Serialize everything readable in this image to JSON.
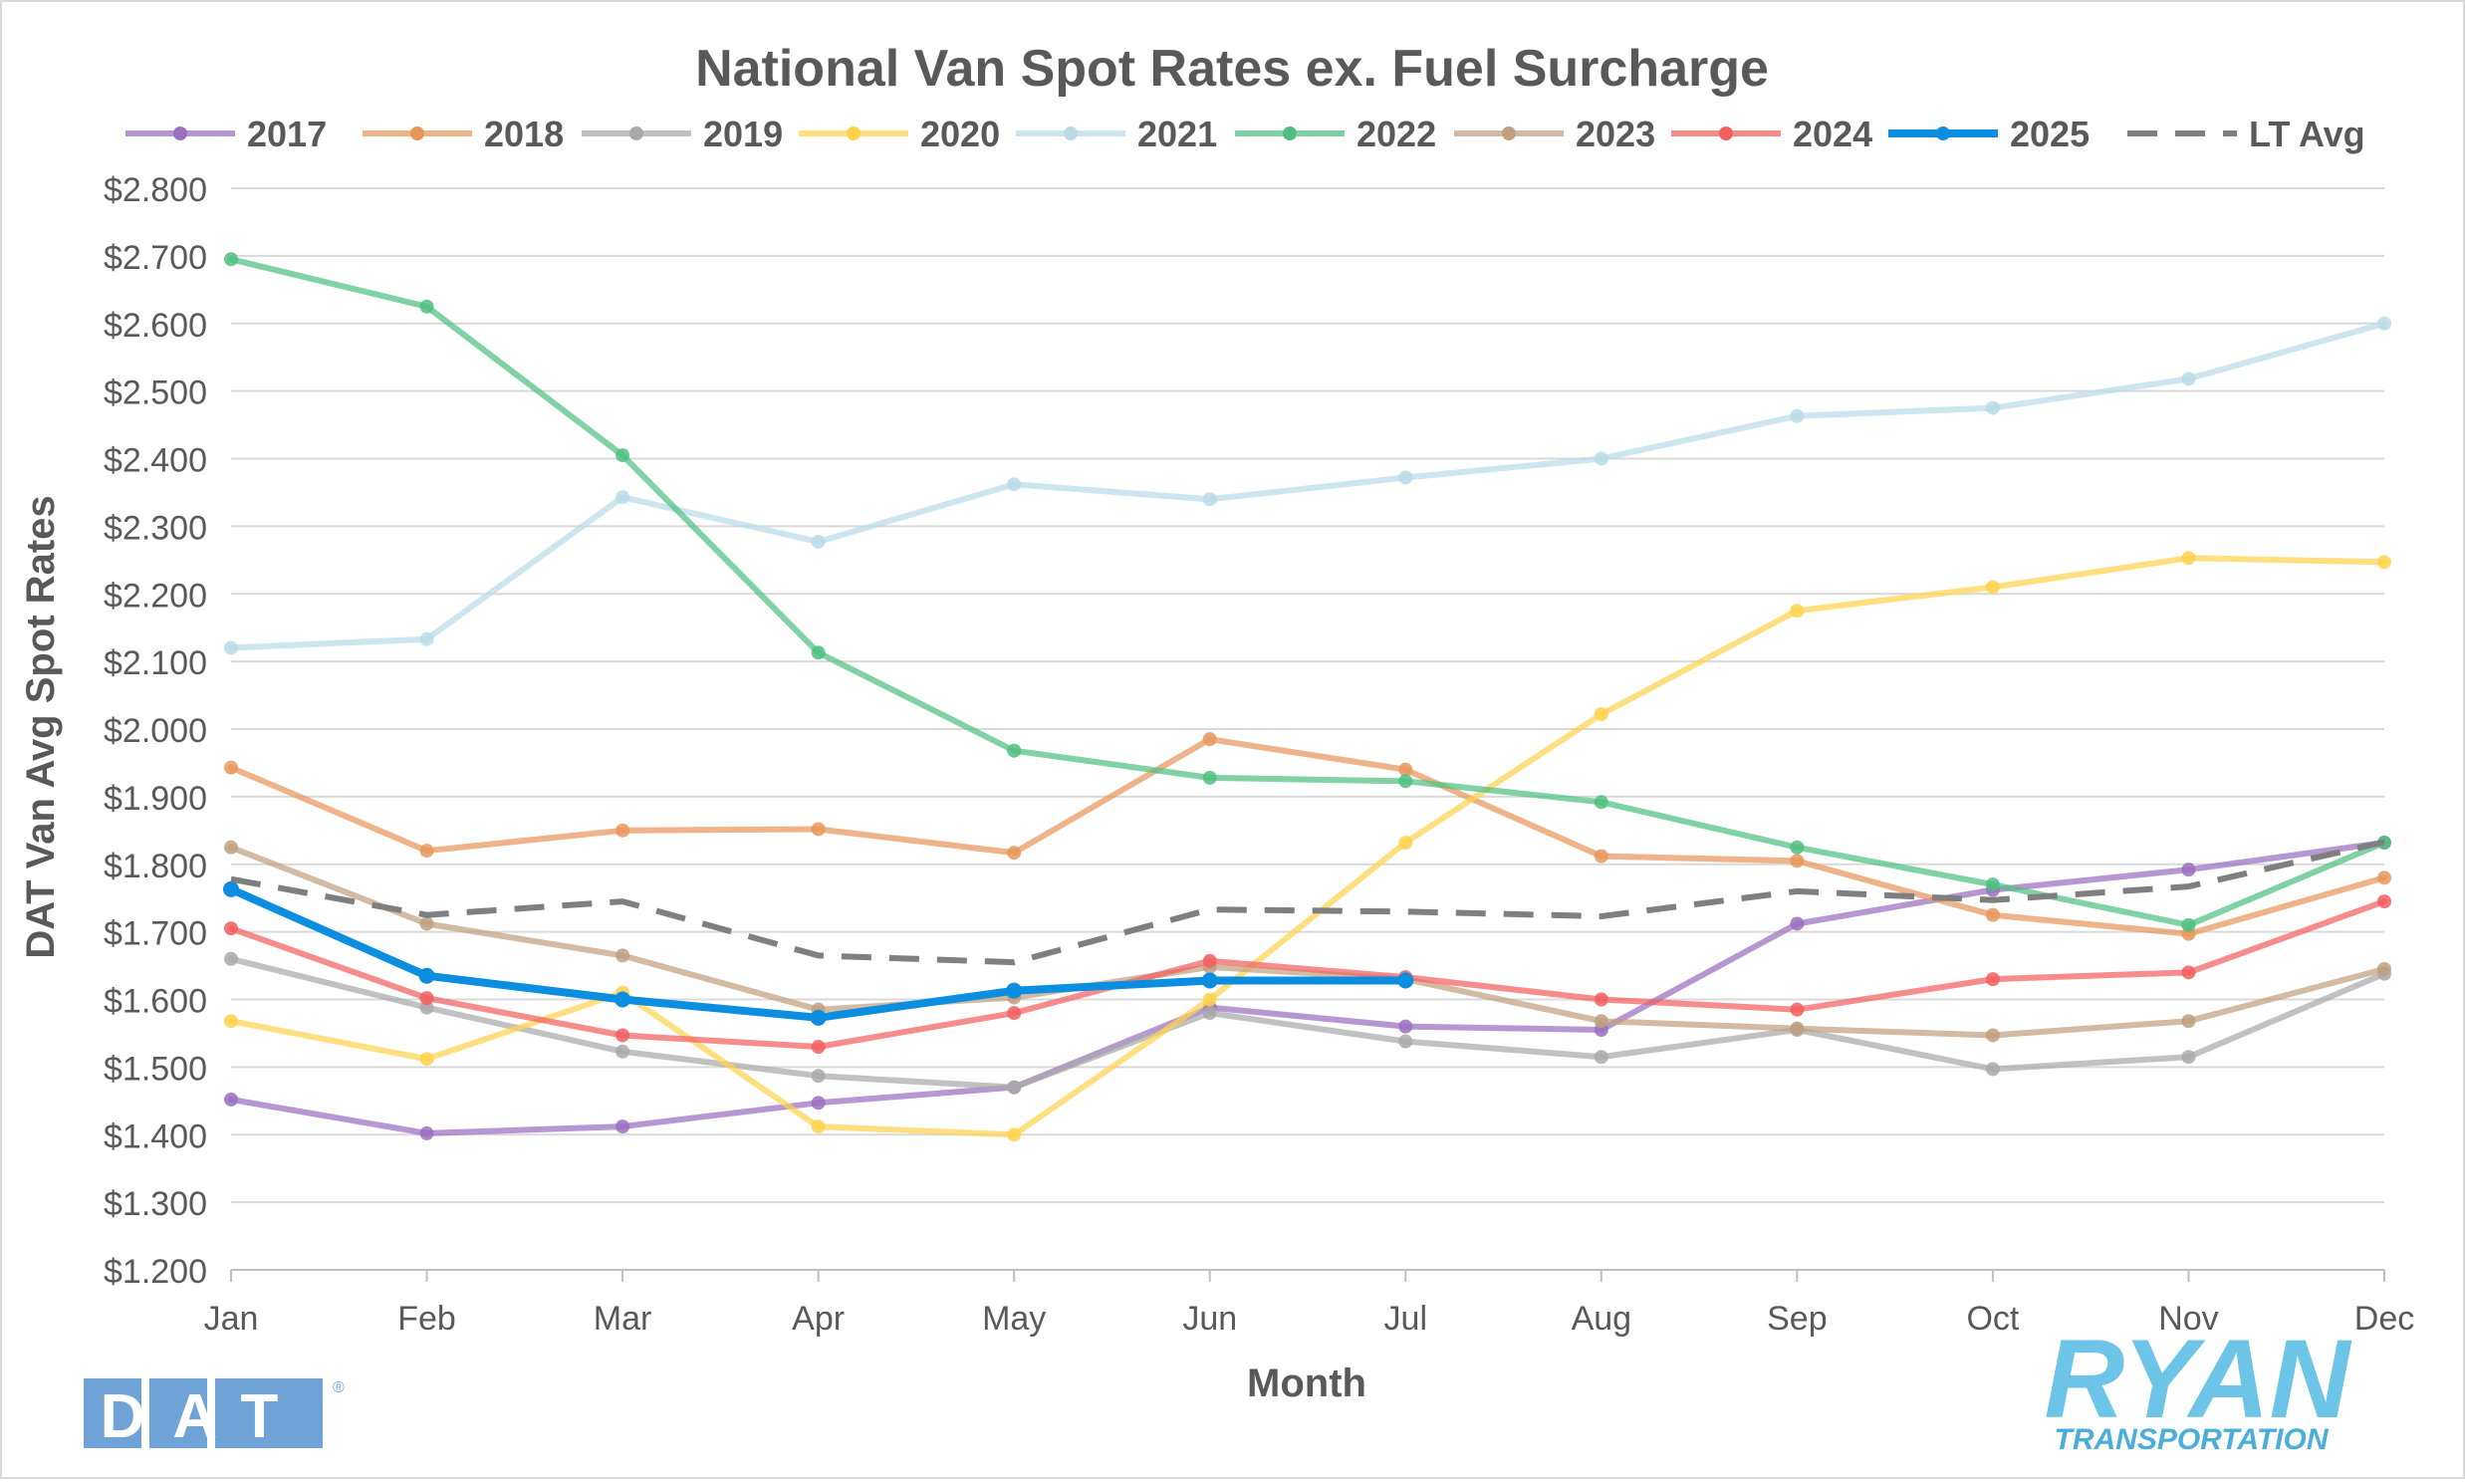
{
  "chart_data": {
    "type": "line",
    "title": "National Van Spot Rates ex. Fuel Surcharge",
    "xlabel": "Month",
    "ylabel": "DAT Van Avg Spot Rates",
    "categories": [
      "Jan",
      "Feb",
      "Mar",
      "Apr",
      "May",
      "Jun",
      "Jul",
      "Aug",
      "Sep",
      "Oct",
      "Nov",
      "Dec"
    ],
    "ylim": [
      1.2,
      2.8
    ],
    "ytick_step": 0.1,
    "ytick_labels": [
      "$1.200",
      "$1.300",
      "$1.400",
      "$1.500",
      "$1.600",
      "$1.700",
      "$1.800",
      "$1.900",
      "$2.000",
      "$2.100",
      "$2.200",
      "$2.300",
      "$2.400",
      "$2.500",
      "$2.600",
      "$2.700",
      "$2.800"
    ],
    "grid": "horizontal",
    "legend_position": "top",
    "series": [
      {
        "name": "2017",
        "color": "#9b6fc0",
        "values": [
          1.452,
          1.402,
          1.412,
          1.447,
          1.47,
          1.588,
          1.56,
          1.555,
          1.712,
          1.762,
          1.792,
          1.832
        ]
      },
      {
        "name": "2018",
        "color": "#e8965a",
        "values": [
          1.943,
          1.82,
          1.85,
          1.852,
          1.817,
          1.985,
          1.94,
          1.812,
          1.805,
          1.725,
          1.697,
          1.78
        ]
      },
      {
        "name": "2019",
        "color": "#a9a9a9",
        "values": [
          1.66,
          1.588,
          1.523,
          1.487,
          1.47,
          1.58,
          1.538,
          1.515,
          1.555,
          1.497,
          1.515,
          1.638
        ]
      },
      {
        "name": "2020",
        "color": "#ffd24d",
        "values": [
          1.568,
          1.512,
          1.61,
          1.412,
          1.4,
          1.6,
          1.832,
          2.022,
          2.175,
          2.21,
          2.253,
          2.247
        ]
      },
      {
        "name": "2021",
        "color": "#b9dbe8",
        "values": [
          2.12,
          2.133,
          2.343,
          2.277,
          2.362,
          2.34,
          2.372,
          2.4,
          2.463,
          2.475,
          2.518,
          2.6
        ]
      },
      {
        "name": "2022",
        "color": "#4fbf7f",
        "values": [
          2.695,
          2.625,
          2.405,
          2.113,
          1.968,
          1.928,
          1.923,
          1.892,
          1.825,
          1.77,
          1.71,
          1.832
        ]
      },
      {
        "name": "2023",
        "color": "#c0a080",
        "values": [
          1.825,
          1.712,
          1.665,
          1.585,
          1.603,
          1.648,
          1.63,
          1.568,
          1.557,
          1.547,
          1.568,
          1.645
        ]
      },
      {
        "name": "2024",
        "color": "#f25f5f",
        "values": [
          1.705,
          1.602,
          1.547,
          1.53,
          1.58,
          1.657,
          1.633,
          1.6,
          1.585,
          1.63,
          1.64,
          1.745
        ]
      },
      {
        "name": "2025",
        "color": "#0c8ee0",
        "values": [
          1.763,
          1.635,
          1.6,
          1.573,
          1.613,
          1.628,
          1.628,
          null,
          null,
          null,
          null,
          null
        ]
      },
      {
        "name": "LT Avg",
        "color": "#7f7f7f",
        "dashed": true,
        "values": [
          1.778,
          1.725,
          1.745,
          1.665,
          1.655,
          1.733,
          1.73,
          1.723,
          1.76,
          1.747,
          1.767,
          1.833
        ]
      }
    ]
  },
  "logos": {
    "dat": "DAT",
    "dat_mark": "®",
    "ryan": "RYAN",
    "ryan_sub": "TRANSPORTATION",
    "dat_color": "#6fa3d8",
    "ryan_color": "#6cc4e6",
    "ryan_sub_color": "#4aaedb"
  }
}
